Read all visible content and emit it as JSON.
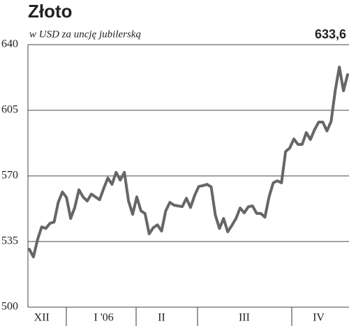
{
  "chart_data": {
    "type": "line",
    "title": "Złoto",
    "subtitle": "w USD za uncję jubilerską",
    "annotation": "633,6",
    "categories": [
      null,
      null,
      null,
      "XII",
      null,
      null,
      null,
      null,
      null,
      null,
      null,
      null,
      null,
      null,
      null,
      null,
      null,
      null,
      "I '06",
      null,
      null,
      null,
      null,
      null,
      null,
      null,
      null,
      null,
      null,
      null,
      null,
      null,
      "II",
      null,
      null,
      null,
      null,
      null,
      null,
      null,
      null,
      null,
      null,
      null,
      null,
      null,
      null,
      null,
      null,
      null,
      null,
      null,
      "III",
      null,
      null,
      null,
      null,
      null,
      null,
      null,
      null,
      null,
      null,
      null,
      null,
      null,
      null,
      null,
      null,
      null,
      "IV",
      null,
      null,
      null,
      null,
      null,
      null,
      null
    ],
    "series": [
      {
        "name": null,
        "color": "#666666",
        "values": [
          530.9,
          526.8,
          536.1,
          542.8,
          542,
          544.7,
          545.4,
          555.9,
          561.4,
          558.5,
          547.3,
          553.2,
          562.6,
          558.8,
          556.6,
          560.3,
          558.8,
          557.3,
          563.3,
          568.9,
          565.5,
          571.9,
          567.8,
          571.9,
          556.6,
          549.5,
          558.8,
          551.4,
          549.9,
          539.1,
          542.4,
          543.9,
          540.6,
          551.4,
          555.9,
          554.4,
          554,
          553.6,
          558.1,
          553.2,
          559.6,
          564.4,
          564.8,
          565.5,
          564.1,
          549.1,
          542,
          547.3,
          540.2,
          543.6,
          547.3,
          552.9,
          550.3,
          553.6,
          554,
          550,
          550,
          548,
          558.8,
          566.3,
          567.4,
          566.3,
          583,
          584.9,
          589.7,
          586.8,
          586.8,
          593.1,
          589.4,
          594.6,
          598.7,
          598.7,
          594,
          599,
          615.4,
          628.1,
          615.4,
          624
        ]
      }
    ],
    "ylim": [
      500,
      640
    ],
    "yticks": [
      500,
      535,
      570,
      605,
      640
    ],
    "grid": true
  }
}
